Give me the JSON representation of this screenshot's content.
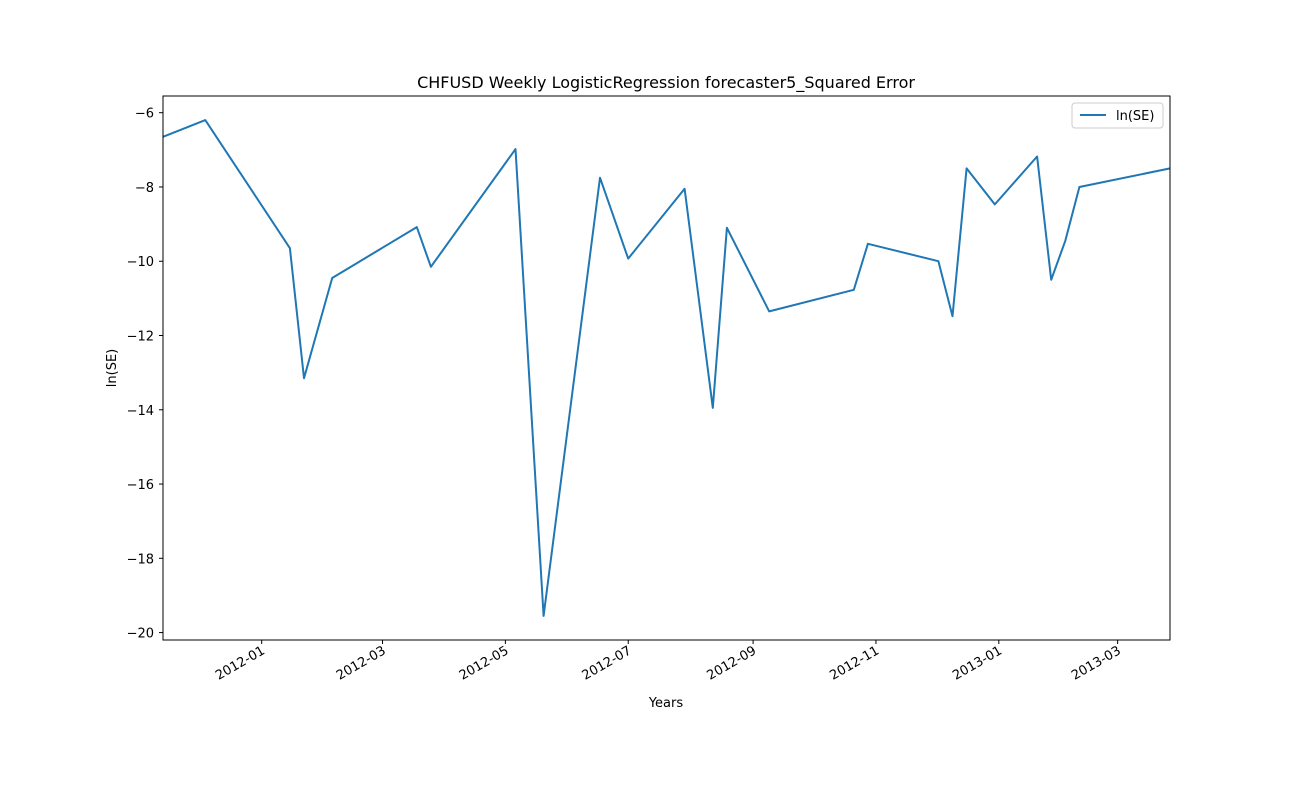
{
  "chart_data": {
    "type": "line",
    "title": "CHFUSD Weekly LogisticRegression forecaster5_Squared Error",
    "xlabel": "Years",
    "ylabel": "ln(SE)",
    "x_range": [
      "2011-11-13",
      "2013-03-27"
    ],
    "ylim": [
      -20.2,
      -5.55
    ],
    "y_ticks": [
      -6,
      -8,
      -10,
      -12,
      -14,
      -16,
      -18,
      -20
    ],
    "y_tick_labels": [
      "−6",
      "−8",
      "−10",
      "−12",
      "−14",
      "−16",
      "−18",
      "−20"
    ],
    "x_ticks": [
      "2012-01-01",
      "2012-03-01",
      "2012-05-01",
      "2012-07-01",
      "2012-09-01",
      "2012-11-01",
      "2013-01-01",
      "2013-03-01"
    ],
    "x_tick_labels": [
      "2012-01",
      "2012-03",
      "2012-05",
      "2012-07",
      "2012-09",
      "2012-11",
      "2013-01",
      "2013-03"
    ],
    "legend": {
      "position": "upper-right",
      "entries": [
        "ln(SE)"
      ]
    },
    "grid": false,
    "series": [
      {
        "name": "ln(SE)",
        "color": "#1f77b4",
        "x": [
          "2011-11-13",
          "2011-12-04",
          "2012-01-15",
          "2012-01-22",
          "2012-02-05",
          "2012-03-18",
          "2012-03-25",
          "2012-05-06",
          "2012-05-20",
          "2012-06-17",
          "2012-07-01",
          "2012-07-29",
          "2012-08-12",
          "2012-08-19",
          "2012-09-09",
          "2012-10-21",
          "2012-10-28",
          "2012-12-02",
          "2012-12-09",
          "2012-12-16",
          "2012-12-30",
          "2013-01-20",
          "2013-01-27",
          "2013-02-03",
          "2013-02-10",
          "2013-03-27"
        ],
        "values": [
          -6.65,
          -6.2,
          -9.65,
          -13.15,
          -10.45,
          -9.08,
          -10.15,
          -6.98,
          -19.55,
          -7.75,
          -9.93,
          -8.05,
          -13.95,
          -9.1,
          -11.35,
          -10.77,
          -9.53,
          -10.0,
          -11.48,
          -7.5,
          -8.47,
          -7.18,
          -10.5,
          -9.45,
          -8.0,
          -7.5
        ]
      }
    ]
  }
}
